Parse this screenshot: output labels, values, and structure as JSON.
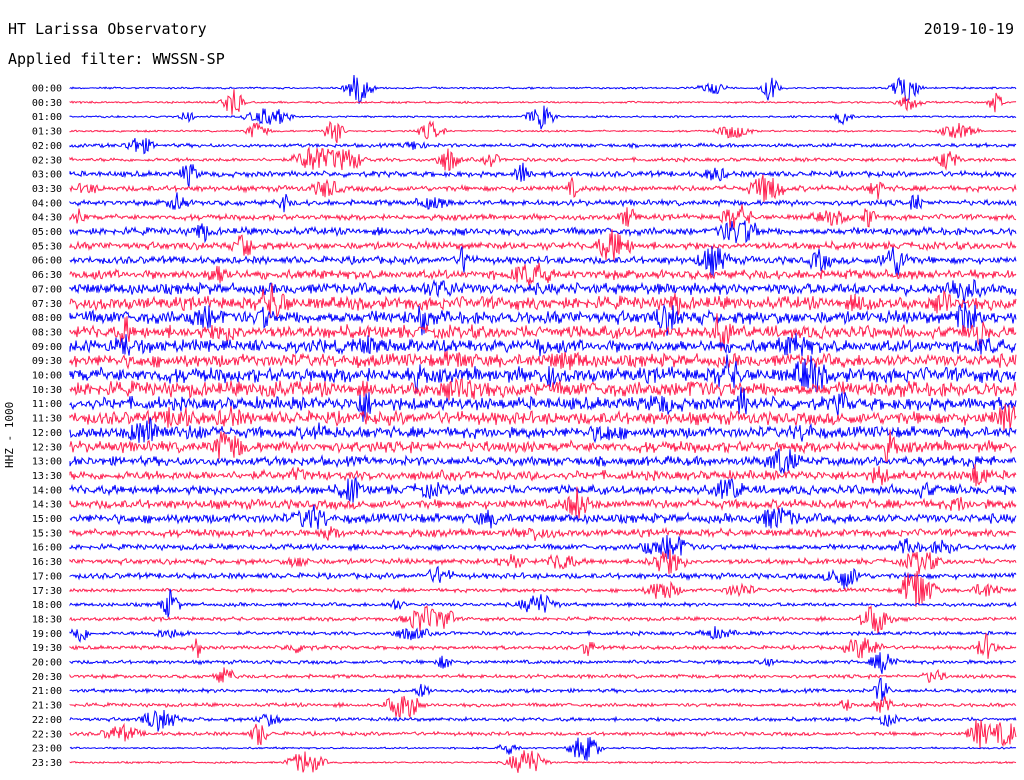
{
  "header": {
    "station": "HT Larissa Observatory",
    "date": "2019-10-19",
    "filter": "Applied filter: WWSSN-SP"
  },
  "chart_data": {
    "type": "line",
    "ylabel": "HHZ - 1000",
    "rows": [
      "00:00",
      "00:30",
      "01:00",
      "01:30",
      "02:00",
      "02:30",
      "03:00",
      "03:30",
      "04:00",
      "04:30",
      "05:00",
      "05:30",
      "06:00",
      "06:30",
      "07:00",
      "07:30",
      "08:00",
      "08:30",
      "09:00",
      "09:30",
      "10:00",
      "10:30",
      "11:00",
      "11:30",
      "12:00",
      "12:30",
      "13:00",
      "13:30",
      "14:00",
      "14:30",
      "15:00",
      "15:30",
      "16:00",
      "16:30",
      "17:00",
      "17:30",
      "18:00",
      "18:30",
      "19:00",
      "19:30",
      "20:00",
      "20:30",
      "21:00",
      "21:30",
      "22:00",
      "22:30",
      "23:00",
      "23:30"
    ],
    "noise_level": [
      1,
      1,
      1,
      1,
      2,
      2,
      3,
      3,
      3,
      3,
      4,
      4,
      4,
      5,
      6,
      7,
      7,
      7,
      7,
      7,
      8,
      8,
      7,
      7,
      6,
      6,
      5,
      5,
      5,
      5,
      5,
      4,
      3,
      3,
      3,
      2,
      2,
      2,
      2,
      2,
      2,
      2,
      2,
      2,
      2,
      2,
      1,
      1
    ],
    "colors": [
      "#0000ff",
      "#ff1f4f"
    ]
  }
}
